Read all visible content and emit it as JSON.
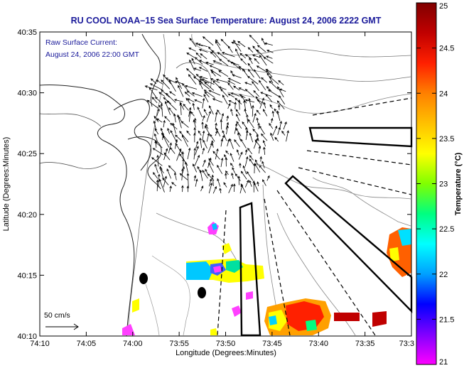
{
  "title": "RU COOL  NOAA–15  Sea Surface Temperature:  August 24, 2006 2222 GMT",
  "annotation": {
    "line1": "Raw Surface Current:",
    "line2": "August 24, 2006 22:00 GMT"
  },
  "scale_label": "50 cm/s",
  "map": {
    "xlabel": "Longitude (Degrees:Minutes)",
    "ylabel": "Latitude (Degrees:Minutes)",
    "lon_ticks": [
      "74:10",
      "74:05",
      "74:00",
      "73:55",
      "73:50",
      "73:45",
      "73:40",
      "73:35",
      "73:3"
    ],
    "lat_ticks": [
      "40:35",
      "40:30",
      "40:25",
      "40:20",
      "40:15",
      "40:10"
    ]
  },
  "colorbar": {
    "label": "Temperature (°C)",
    "ticks": [
      "25",
      "24.5",
      "24",
      "23.5",
      "23",
      "22.5",
      "22",
      "21.5",
      "21"
    ],
    "range": [
      21,
      25
    ],
    "colors": [
      "#ff00ff",
      "#8000ff",
      "#0000ff",
      "#00a0ff",
      "#00ffff",
      "#00ff80",
      "#80ff00",
      "#ffff00",
      "#ffc000",
      "#ff8000",
      "#ff2000",
      "#c00000",
      "#800000"
    ]
  }
}
